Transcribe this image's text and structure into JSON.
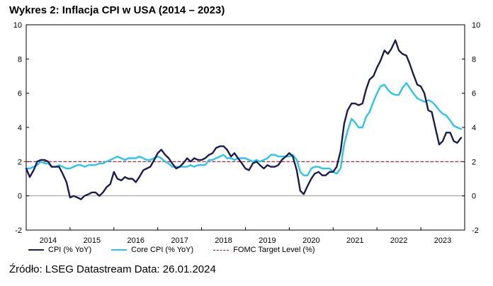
{
  "title": "Wykres 2: Inflacja CPI w USA (2014 – 2023)",
  "source": "Źródło: LSEG Datastream Data: 26.01.2024",
  "colors": {
    "cpi": "#1b1d4f",
    "core": "#29c5f0",
    "target": "#a0141e"
  },
  "chart_data": {
    "type": "line",
    "title": "Wykres 2: Inflacja CPI w USA (2014 – 2023)",
    "xlabel": "",
    "ylabel": "",
    "ylim": [
      -2,
      10
    ],
    "yticks": [
      "-2",
      "0",
      "2",
      "4",
      "6",
      "8",
      "10"
    ],
    "secondary_yticks": [
      "-2",
      "0",
      "2",
      "4",
      "6",
      "8",
      "10"
    ],
    "xlim": [
      2014.0,
      2024.0
    ],
    "xticks": [
      "2014",
      "2015",
      "2016",
      "2017",
      "2018",
      "2019",
      "2020",
      "2021",
      "2022",
      "2023"
    ],
    "grid": false,
    "legend_position": "bottom",
    "series": [
      {
        "name": "CPI (% YoY)",
        "style": "solid",
        "x": [
          2014.0,
          2014.08,
          2014.17,
          2014.25,
          2014.33,
          2014.42,
          2014.5,
          2014.58,
          2014.67,
          2014.75,
          2014.83,
          2014.92,
          2015.0,
          2015.08,
          2015.17,
          2015.25,
          2015.33,
          2015.42,
          2015.5,
          2015.58,
          2015.67,
          2015.75,
          2015.83,
          2015.92,
          2016.0,
          2016.08,
          2016.17,
          2016.25,
          2016.33,
          2016.42,
          2016.5,
          2016.58,
          2016.67,
          2016.75,
          2016.83,
          2016.92,
          2017.0,
          2017.08,
          2017.17,
          2017.25,
          2017.33,
          2017.42,
          2017.5,
          2017.58,
          2017.67,
          2017.75,
          2017.83,
          2017.92,
          2018.0,
          2018.08,
          2018.17,
          2018.25,
          2018.33,
          2018.42,
          2018.5,
          2018.58,
          2018.67,
          2018.75,
          2018.83,
          2018.92,
          2019.0,
          2019.08,
          2019.17,
          2019.25,
          2019.33,
          2019.42,
          2019.5,
          2019.58,
          2019.67,
          2019.75,
          2019.83,
          2019.92,
          2020.0,
          2020.08,
          2020.17,
          2020.25,
          2020.33,
          2020.42,
          2020.5,
          2020.58,
          2020.67,
          2020.75,
          2020.83,
          2020.92,
          2021.0,
          2021.08,
          2021.17,
          2021.25,
          2021.33,
          2021.42,
          2021.5,
          2021.58,
          2021.67,
          2021.75,
          2021.83,
          2021.92,
          2022.0,
          2022.08,
          2022.17,
          2022.25,
          2022.33,
          2022.42,
          2022.5,
          2022.58,
          2022.67,
          2022.75,
          2022.83,
          2022.92,
          2023.0,
          2023.08,
          2023.17,
          2023.25,
          2023.33,
          2023.42,
          2023.5,
          2023.58,
          2023.67,
          2023.75,
          2023.83,
          2023.92
        ],
        "values": [
          1.6,
          1.1,
          1.5,
          2.0,
          2.1,
          2.1,
          2.0,
          1.7,
          1.7,
          1.7,
          1.3,
          0.8,
          -0.1,
          0.0,
          -0.1,
          -0.2,
          0.0,
          0.1,
          0.2,
          0.2,
          0.0,
          0.2,
          0.5,
          0.7,
          1.4,
          1.0,
          0.9,
          1.1,
          1.0,
          1.0,
          0.8,
          1.1,
          1.5,
          1.6,
          1.7,
          2.1,
          2.5,
          2.7,
          2.4,
          2.2,
          1.9,
          1.6,
          1.7,
          1.9,
          2.2,
          2.0,
          2.2,
          2.1,
          2.1,
          2.2,
          2.4,
          2.5,
          2.8,
          2.9,
          2.9,
          2.7,
          2.3,
          2.5,
          2.2,
          1.9,
          1.6,
          1.5,
          1.9,
          2.0,
          1.8,
          1.6,
          1.8,
          1.7,
          1.7,
          1.8,
          2.1,
          2.3,
          2.5,
          2.3,
          1.5,
          0.3,
          0.1,
          0.6,
          1.0,
          1.3,
          1.4,
          1.2,
          1.2,
          1.4,
          1.4,
          1.7,
          2.6,
          4.2,
          5.0,
          5.4,
          5.4,
          5.3,
          5.4,
          6.2,
          6.8,
          7.0,
          7.5,
          7.9,
          8.5,
          8.3,
          8.6,
          9.1,
          8.5,
          8.3,
          8.2,
          7.7,
          7.1,
          6.5,
          6.4,
          6.0,
          5.0,
          4.9,
          4.0,
          3.0,
          3.2,
          3.7,
          3.7,
          3.2,
          3.1,
          3.4
        ]
      },
      {
        "name": "Core CPI (% YoY)",
        "style": "solid",
        "x": [
          2014.0,
          2014.08,
          2014.17,
          2014.25,
          2014.33,
          2014.42,
          2014.5,
          2014.58,
          2014.67,
          2014.75,
          2014.83,
          2014.92,
          2015.0,
          2015.08,
          2015.17,
          2015.25,
          2015.33,
          2015.42,
          2015.5,
          2015.58,
          2015.67,
          2015.75,
          2015.83,
          2015.92,
          2016.0,
          2016.08,
          2016.17,
          2016.25,
          2016.33,
          2016.42,
          2016.5,
          2016.58,
          2016.67,
          2016.75,
          2016.83,
          2016.92,
          2017.0,
          2017.08,
          2017.17,
          2017.25,
          2017.33,
          2017.42,
          2017.5,
          2017.58,
          2017.67,
          2017.75,
          2017.83,
          2017.92,
          2018.0,
          2018.08,
          2018.17,
          2018.25,
          2018.33,
          2018.42,
          2018.5,
          2018.58,
          2018.67,
          2018.75,
          2018.83,
          2018.92,
          2019.0,
          2019.08,
          2019.17,
          2019.25,
          2019.33,
          2019.42,
          2019.5,
          2019.58,
          2019.67,
          2019.75,
          2019.83,
          2019.92,
          2020.0,
          2020.08,
          2020.17,
          2020.25,
          2020.33,
          2020.42,
          2020.5,
          2020.58,
          2020.67,
          2020.75,
          2020.83,
          2020.92,
          2021.0,
          2021.08,
          2021.17,
          2021.25,
          2021.33,
          2021.42,
          2021.5,
          2021.58,
          2021.67,
          2021.75,
          2021.83,
          2021.92,
          2022.0,
          2022.08,
          2022.17,
          2022.25,
          2022.33,
          2022.42,
          2022.5,
          2022.58,
          2022.67,
          2022.75,
          2022.83,
          2022.92,
          2023.0,
          2023.08,
          2023.17,
          2023.25,
          2023.33,
          2023.42,
          2023.5,
          2023.58,
          2023.67,
          2023.75,
          2023.83,
          2023.92
        ],
        "values": [
          1.6,
          1.6,
          1.7,
          1.8,
          2.0,
          1.9,
          1.9,
          1.7,
          1.7,
          1.8,
          1.7,
          1.6,
          1.6,
          1.7,
          1.8,
          1.8,
          1.7,
          1.8,
          1.8,
          1.8,
          1.9,
          1.9,
          2.0,
          2.1,
          2.2,
          2.3,
          2.2,
          2.1,
          2.2,
          2.2,
          2.2,
          2.3,
          2.2,
          2.1,
          2.1,
          2.2,
          2.3,
          2.2,
          2.0,
          1.9,
          1.7,
          1.7,
          1.7,
          1.7,
          1.7,
          1.8,
          1.7,
          1.8,
          1.8,
          1.8,
          2.1,
          2.1,
          2.2,
          2.3,
          2.4,
          2.2,
          2.2,
          2.1,
          2.2,
          2.2,
          2.2,
          2.1,
          2.0,
          2.1,
          2.0,
          2.1,
          2.2,
          2.4,
          2.4,
          2.3,
          2.3,
          2.3,
          2.3,
          2.4,
          2.1,
          1.4,
          1.2,
          1.2,
          1.6,
          1.7,
          1.7,
          1.6,
          1.6,
          1.6,
          1.4,
          1.3,
          1.6,
          3.0,
          3.8,
          4.5,
          4.3,
          4.0,
          4.0,
          4.6,
          4.9,
          5.5,
          6.0,
          6.4,
          6.5,
          6.2,
          6.0,
          5.9,
          5.9,
          6.3,
          6.6,
          6.3,
          6.0,
          5.7,
          5.6,
          5.5,
          5.6,
          5.5,
          5.3,
          5.0,
          4.8,
          4.7,
          4.4,
          4.1,
          4.0,
          3.9
        ]
      },
      {
        "name": "FOMC Target Level (%)",
        "style": "dashed",
        "x": [
          2013.95,
          2024.0
        ],
        "values": [
          2,
          2
        ]
      }
    ]
  }
}
